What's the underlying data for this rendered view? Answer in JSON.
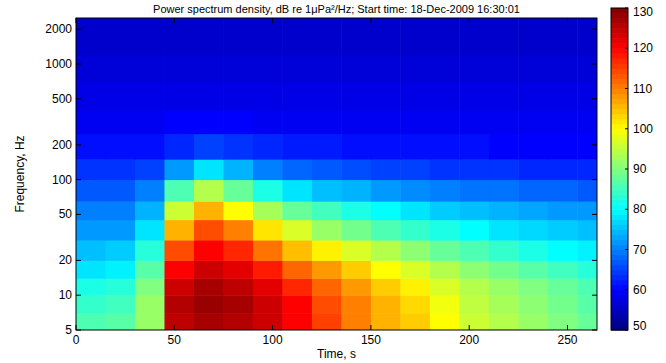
{
  "chart_data": {
    "type": "heatmap",
    "title": "Power spectrum density, dB re 1μPa²/Hz; Start time: 18-Dec-2009 16:30:01",
    "x_label": "Time, s",
    "y_label": "Frequency, Hz",
    "log": "y",
    "xlim": [
      0,
      265
    ],
    "ylim": [
      5,
      2500
    ],
    "xticks": [
      0,
      50,
      100,
      150,
      200,
      250
    ],
    "yticks": [
      5,
      10,
      20,
      50,
      100,
      200,
      500,
      1000,
      2000
    ],
    "x_bins": [
      0,
      15,
      30,
      45,
      60,
      75,
      90,
      105,
      120,
      135,
      150,
      165,
      180,
      195,
      210,
      225,
      240,
      255,
      265
    ],
    "y_bins": [
      5,
      7,
      10,
      14,
      20,
      30,
      45,
      65,
      100,
      150,
      250,
      400,
      700,
      1200,
      2500
    ],
    "values": [
      [
        86,
        87,
        92,
        125,
        127,
        126,
        124,
        120,
        115,
        110,
        106,
        104,
        100,
        96,
        94,
        92,
        90,
        88
      ],
      [
        84,
        85,
        92,
        126,
        128,
        127,
        124,
        120,
        114,
        110,
        106,
        103,
        99,
        95,
        93,
        91,
        89,
        87
      ],
      [
        82,
        83,
        90,
        124,
        127,
        125,
        122,
        117,
        112,
        108,
        104,
        101,
        97,
        94,
        92,
        90,
        88,
        86
      ],
      [
        78,
        79,
        87,
        120,
        124,
        122,
        118,
        112,
        108,
        104,
        100,
        97,
        94,
        91,
        89,
        87,
        85,
        83
      ],
      [
        75,
        76,
        83,
        114,
        120,
        117,
        111,
        105,
        101,
        97,
        94,
        91,
        88,
        86,
        84,
        82,
        80,
        79
      ],
      [
        72,
        72,
        78,
        106,
        114,
        110,
        102,
        97,
        92,
        89,
        86,
        84,
        82,
        80,
        78,
        77,
        76,
        75
      ],
      [
        70,
        70,
        74,
        96,
        106,
        100,
        93,
        88,
        85,
        82,
        80,
        78,
        76,
        75,
        74,
        73,
        72,
        72
      ],
      [
        67,
        67,
        70,
        86,
        94,
        88,
        82,
        78,
        75,
        74,
        72,
        71,
        70,
        69,
        69,
        68,
        68,
        67
      ],
      [
        64,
        64,
        65,
        72,
        78,
        74,
        70,
        68,
        67,
        66,
        65,
        65,
        64,
        64,
        64,
        63,
        63,
        63
      ],
      [
        61,
        61,
        61,
        63,
        65,
        64,
        63,
        62,
        62,
        61,
        61,
        61,
        61,
        61,
        60,
        60,
        60,
        60
      ],
      [
        59,
        59,
        59,
        60,
        60,
        60,
        59,
        59,
        59,
        59,
        59,
        59,
        59,
        59,
        59,
        59,
        59,
        59
      ],
      [
        58,
        58,
        58,
        58,
        58,
        58,
        58,
        58,
        58,
        58,
        58,
        58,
        58,
        58,
        58,
        58,
        58,
        58
      ],
      [
        57,
        57,
        57,
        57,
        57,
        57,
        57,
        57,
        57,
        57,
        57,
        57,
        57,
        57,
        57,
        57,
        57,
        57
      ],
      [
        56,
        56,
        56,
        56,
        56,
        56,
        56,
        56,
        56,
        56,
        56,
        56,
        56,
        56,
        56,
        56,
        56,
        56
      ]
    ],
    "colorbar_range": [
      50,
      130
    ],
    "colorbar_ticks": [
      50,
      60,
      70,
      80,
      90,
      100,
      110,
      120,
      130
    ]
  }
}
